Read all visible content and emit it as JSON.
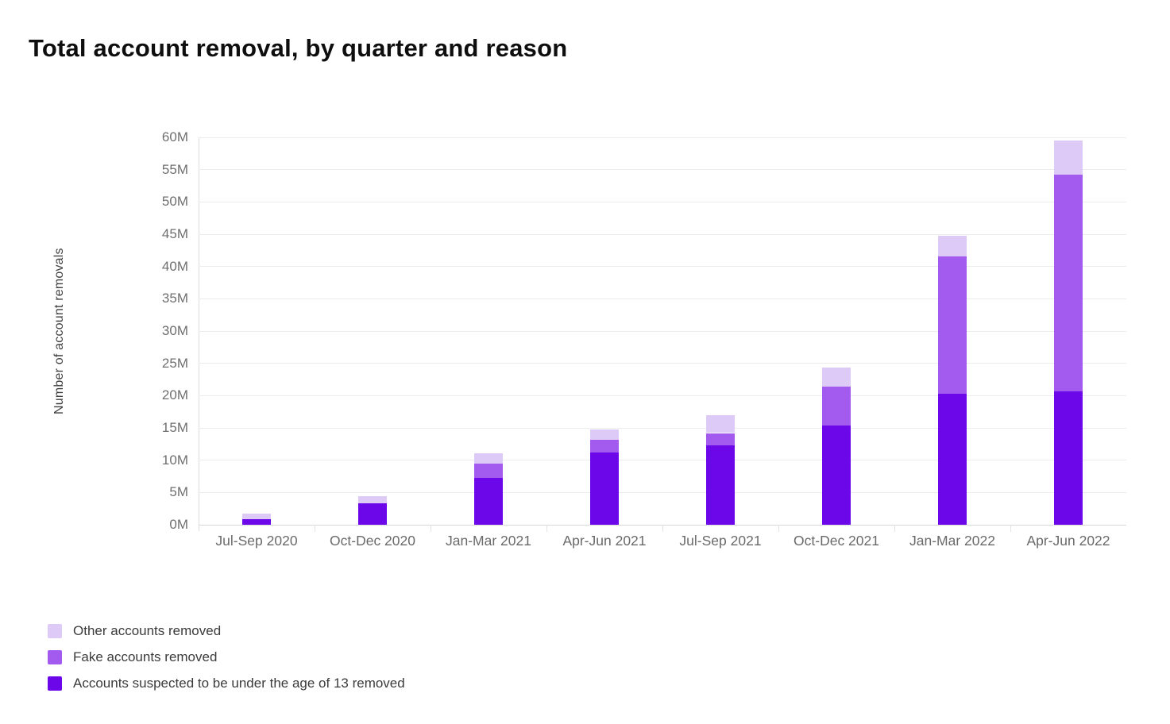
{
  "title": "Total account removal, by quarter and reason",
  "chart_data": {
    "type": "bar",
    "stacked": true,
    "title": "Total account removal, by quarter and reason",
    "ylabel": "Number of account removals",
    "xlabel": "",
    "ylim": [
      0,
      60
    ],
    "ytick_step": 5,
    "yticks": [
      "0M",
      "5M",
      "10M",
      "15M",
      "20M",
      "25M",
      "30M",
      "35M",
      "40M",
      "45M",
      "50M",
      "55M",
      "60M"
    ],
    "grid": true,
    "legend_position": "bottom-left",
    "value_unit": "millions",
    "categories": [
      "Jul-Sep 2020",
      "Oct-Dec 2020",
      "Jan-Mar 2021",
      "Apr-Jun 2021",
      "Jul-Sep 2021",
      "Oct-Dec 2021",
      "Jan-Mar 2022",
      "Apr-Jun 2022"
    ],
    "series": [
      {
        "name": "Accounts suspected to be under the age of 13 removed",
        "color": "#6c07ea",
        "values": [
          0.9,
          3.3,
          7.3,
          11.2,
          12.3,
          15.4,
          20.3,
          20.6
        ]
      },
      {
        "name": "Fake accounts removed",
        "color": "#a35bef",
        "values": [
          0,
          0,
          2.2,
          1.9,
          1.9,
          6.0,
          21.2,
          33.6
        ]
      },
      {
        "name": "Other accounts removed",
        "color": "#decaf6",
        "values": [
          0.8,
          1.1,
          1.6,
          1.7,
          2.8,
          2.9,
          3.3,
          5.3
        ]
      }
    ]
  },
  "legend": {
    "items": [
      {
        "label": "Other accounts removed",
        "color": "#decaf6"
      },
      {
        "label": "Fake accounts removed",
        "color": "#a35bef"
      },
      {
        "label": "Accounts suspected to be under the age of 13 removed",
        "color": "#6c07ea"
      }
    ]
  },
  "colors": {
    "under13": "#6c07ea",
    "fake": "#a35bef",
    "other": "#decaf6",
    "gridline": "#ececec",
    "axis_text": "#6f6f6f",
    "title_text": "#0e0e0e"
  }
}
